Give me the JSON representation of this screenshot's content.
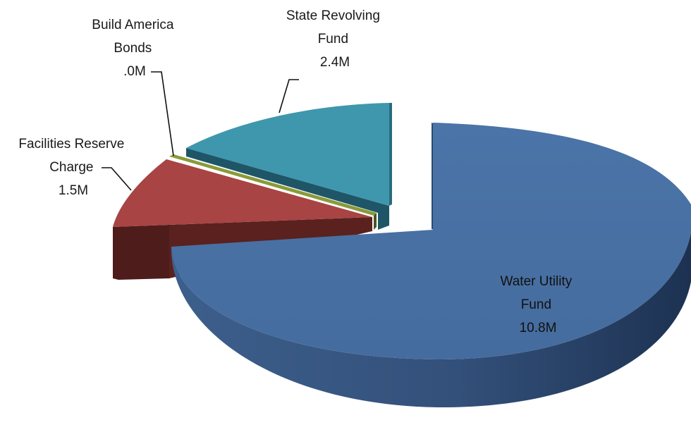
{
  "chart_data": {
    "type": "pie",
    "style": "3d-exploded",
    "title": "",
    "legend": "none",
    "slices": [
      {
        "key": "water",
        "label_lines": [
          "Water Utility",
          "Fund"
        ],
        "value_label": "10.8M",
        "value": 10.8,
        "color": "#4870a3",
        "side_color": "#2d4a70"
      },
      {
        "key": "facilities",
        "label_lines": [
          "Facilities Reserve",
          "Charge"
        ],
        "value_label": "1.5M",
        "value": 1.5,
        "color": "#a84443",
        "side_color": "#4e1c1b"
      },
      {
        "key": "bonds",
        "label_lines": [
          "Build America",
          "Bonds"
        ],
        "value_label": ".0M",
        "value": 0.0,
        "color": "#8a9a3a",
        "side_color": "#4b5420"
      },
      {
        "key": "srf",
        "label_lines": [
          "State Revolving",
          "Fund"
        ],
        "value_label": "2.4M",
        "value": 2.4,
        "color": "#3f97ad",
        "side_color": "#21596a"
      }
    ]
  }
}
